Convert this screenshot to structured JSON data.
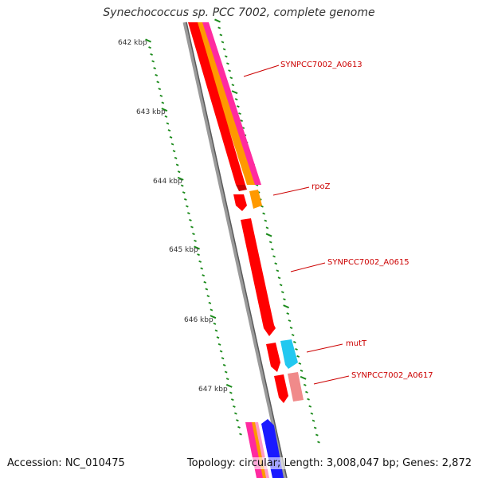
{
  "title": "Synechococcus sp. PCC 7002, complete genome",
  "footer": {
    "accession": "Accession: NC_010475",
    "summary": "Topology: circular; Length: 3,008,047 bp; Genes: 2,872"
  },
  "colors": {
    "backbone": "#7a7a7a",
    "ticks": "#1a8a1a",
    "cds": "#ff0000",
    "orange_track": "#ff9900",
    "pink_track": "#ff2aa0",
    "cyan": "#22c8f0",
    "salmon": "#f08a8a",
    "blue": "#1a1aff",
    "label": "#cc0000"
  },
  "kbp_labels": [
    "642 kbp",
    "643 kbp",
    "644 kbp",
    "645 kbp",
    "646 kbp",
    "647 kbp"
  ],
  "gene_labels": [
    "SYNPCC7002_A0613",
    "rpoZ",
    "SYNPCC7002_A0615",
    "mutT",
    "SYNPCC7002_A0617"
  ]
}
